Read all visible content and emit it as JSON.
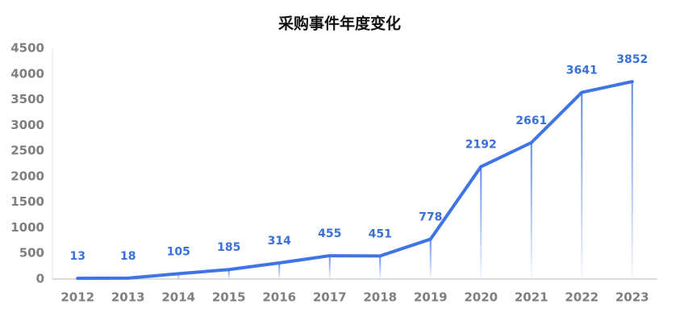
{
  "chart_data": {
    "type": "line",
    "title": "采购事件年度变化",
    "categories": [
      "2012",
      "2013",
      "2014",
      "2015",
      "2016",
      "2017",
      "2018",
      "2019",
      "2020",
      "2021",
      "2022",
      "2023"
    ],
    "values": [
      13,
      18,
      105,
      185,
      314,
      455,
      451,
      778,
      2192,
      2661,
      3641,
      3852
    ],
    "color": "#3e74e3",
    "ylim": [
      0,
      4500
    ],
    "yticks": [
      0,
      500,
      1000,
      1500,
      2000,
      2500,
      3000,
      3500,
      4000,
      4500
    ],
    "grid": false
  }
}
